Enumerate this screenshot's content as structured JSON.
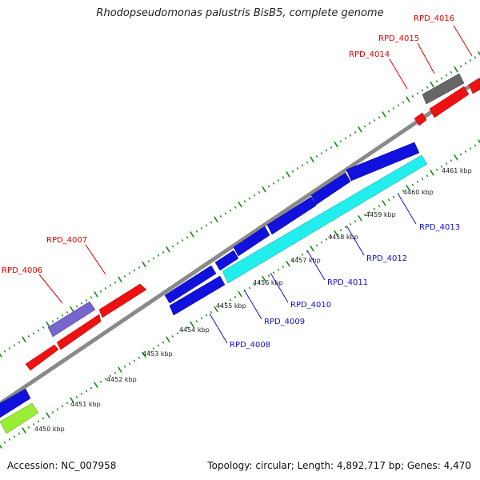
{
  "title": "Rhodopseudomonas palustris BisB5, complete genome",
  "footer": {
    "accession": "Accession: NC_007958",
    "stats": "Topology: circular; Length: 4,892,717 bp; Genes: 4,470"
  },
  "colors": {
    "backbone": "#888888",
    "red_gene": "#ee1111",
    "blue_gene": "#1111dd",
    "cyan_gene": "#22eeee",
    "purple_gene": "#7766cc",
    "gray_gene": "#666666",
    "green_gene": "#99ee33",
    "tick": "#1a8a1a",
    "label_red": "#e00000",
    "label_blue": "#1010d0"
  },
  "tick_labels": [
    "4450 kbp",
    "4451 kbp",
    "4452 kbp",
    "4453 kbp",
    "4454 kbp",
    "4455 kbp",
    "4456 kbp",
    "4457 kbp",
    "4458 kbp",
    "4459 kbp",
    "4460 kbp",
    "4461 kbp"
  ],
  "gene_labels": {
    "RPD_4006": "RPD_4006",
    "RPD_4007": "RPD_4007",
    "RPD_4008": "RPD_4008",
    "RPD_4009": "RPD_4009",
    "RPD_4010": "RPD_4010",
    "RPD_4011": "RPD_4011",
    "RPD_4012": "RPD_4012",
    "RPD_4013": "RPD_4013",
    "RPD_4014": "RPD_4014",
    "RPD_4015": "RPD_4015",
    "RPD_4016": "RPD_4016"
  }
}
